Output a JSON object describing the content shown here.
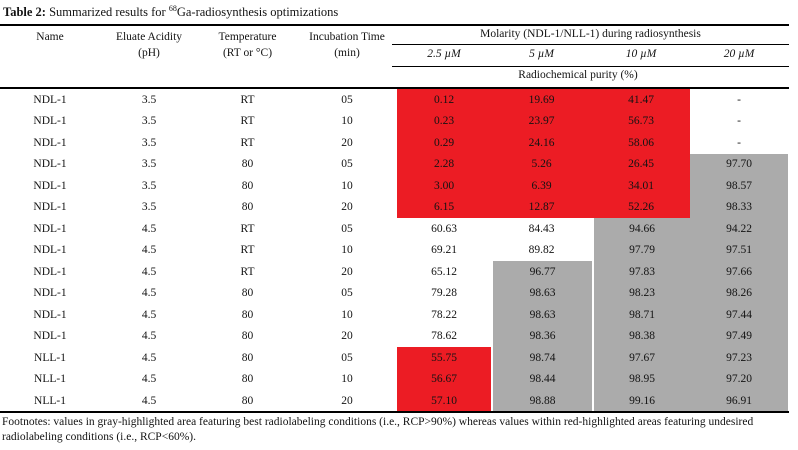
{
  "title": {
    "bold": "Table 2:",
    "rest_pre": "Summarized results for ",
    "isotope": "68",
    "rest_post": "Ga-radiosynthesis optimizations"
  },
  "header": {
    "name": "Name",
    "eluate_line1": "Eluate Acidity",
    "eluate_line2": "(pH)",
    "temp_line1": "Temperature",
    "temp_line2": "(RT or °C)",
    "incub_line1": "Incubation Time",
    "incub_line2": "(min)",
    "molarity": "Molarity (NDL-1/NLL-1) during radiosynthesis",
    "concentrations": [
      "2.5 µM",
      "5 µM",
      "10 µM",
      "20 µM"
    ],
    "purity": "Radiochemical purity (%)"
  },
  "rows": [
    {
      "name": "NDL-1",
      "ph": "3.5",
      "temp": "RT",
      "time": "05",
      "values": [
        "0.12",
        "19.69",
        "41.47",
        "-"
      ],
      "hl": [
        "red",
        "red",
        "red",
        "none"
      ]
    },
    {
      "name": "NDL-1",
      "ph": "3.5",
      "temp": "RT",
      "time": "10",
      "values": [
        "0.23",
        "23.97",
        "56.73",
        "-"
      ],
      "hl": [
        "red",
        "red",
        "red",
        "none"
      ]
    },
    {
      "name": "NDL-1",
      "ph": "3.5",
      "temp": "RT",
      "time": "20",
      "values": [
        "0.29",
        "24.16",
        "58.06",
        "-"
      ],
      "hl": [
        "red",
        "red",
        "red",
        "none"
      ]
    },
    {
      "name": "NDL-1",
      "ph": "3.5",
      "temp": "80",
      "time": "05",
      "values": [
        "2.28",
        "5.26",
        "26.45",
        "97.70"
      ],
      "hl": [
        "red",
        "red",
        "red",
        "gray"
      ]
    },
    {
      "name": "NDL-1",
      "ph": "3.5",
      "temp": "80",
      "time": "10",
      "values": [
        "3.00",
        "6.39",
        "34.01",
        "98.57"
      ],
      "hl": [
        "red",
        "red",
        "red",
        "gray"
      ]
    },
    {
      "name": "NDL-1",
      "ph": "3.5",
      "temp": "80",
      "time": "20",
      "values": [
        "6.15",
        "12.87",
        "52.26",
        "98.33"
      ],
      "hl": [
        "red",
        "red",
        "red",
        "gray"
      ]
    },
    {
      "name": "NDL-1",
      "ph": "4.5",
      "temp": "RT",
      "time": "05",
      "values": [
        "60.63",
        "84.43",
        "94.66",
        "94.22"
      ],
      "hl": [
        "none",
        "none",
        "gray",
        "gray"
      ]
    },
    {
      "name": "NDL-1",
      "ph": "4.5",
      "temp": "RT",
      "time": "10",
      "values": [
        "69.21",
        "89.82",
        "97.79",
        "97.51"
      ],
      "hl": [
        "none",
        "none",
        "gray",
        "gray"
      ]
    },
    {
      "name": "NDL-1",
      "ph": "4.5",
      "temp": "RT",
      "time": "20",
      "values": [
        "65.12",
        "96.77",
        "97.83",
        "97.66"
      ],
      "hl": [
        "none",
        "gray",
        "gray",
        "gray"
      ]
    },
    {
      "name": "NDL-1",
      "ph": "4.5",
      "temp": "80",
      "time": "05",
      "values": [
        "79.28",
        "98.63",
        "98.23",
        "98.26"
      ],
      "hl": [
        "none",
        "gray",
        "gray",
        "gray"
      ]
    },
    {
      "name": "NDL-1",
      "ph": "4.5",
      "temp": "80",
      "time": "10",
      "values": [
        "78.22",
        "98.63",
        "98.71",
        "97.44"
      ],
      "hl": [
        "none",
        "gray",
        "gray",
        "gray"
      ]
    },
    {
      "name": "NDL-1",
      "ph": "4.5",
      "temp": "80",
      "time": "20",
      "values": [
        "78.62",
        "98.36",
        "98.38",
        "97.49"
      ],
      "hl": [
        "none",
        "gray",
        "gray",
        "gray"
      ]
    },
    {
      "name": "NLL-1",
      "ph": "4.5",
      "temp": "80",
      "time": "05",
      "values": [
        "55.75",
        "98.74",
        "97.67",
        "97.23"
      ],
      "hl": [
        "red",
        "gray",
        "gray",
        "gray"
      ]
    },
    {
      "name": "NLL-1",
      "ph": "4.5",
      "temp": "80",
      "time": "10",
      "values": [
        "56.67",
        "98.44",
        "98.95",
        "97.20"
      ],
      "hl": [
        "red",
        "gray",
        "gray",
        "gray"
      ]
    },
    {
      "name": "NLL-1",
      "ph": "4.5",
      "temp": "80",
      "time": "20",
      "values": [
        "57.10",
        "98.88",
        "99.16",
        "96.91"
      ],
      "hl": [
        "red",
        "gray",
        "gray",
        "gray"
      ]
    }
  ],
  "footnote": "Footnotes: values in gray-highlighted area featuring best radiolabeling conditions (i.e., RCP>90%) whereas values within red-highlighted areas featuring undesired radiolabeling conditions (i.e., RCP<60%).",
  "colors": {
    "highlight_red": "#ec1c24",
    "highlight_gray": "#ababab"
  }
}
